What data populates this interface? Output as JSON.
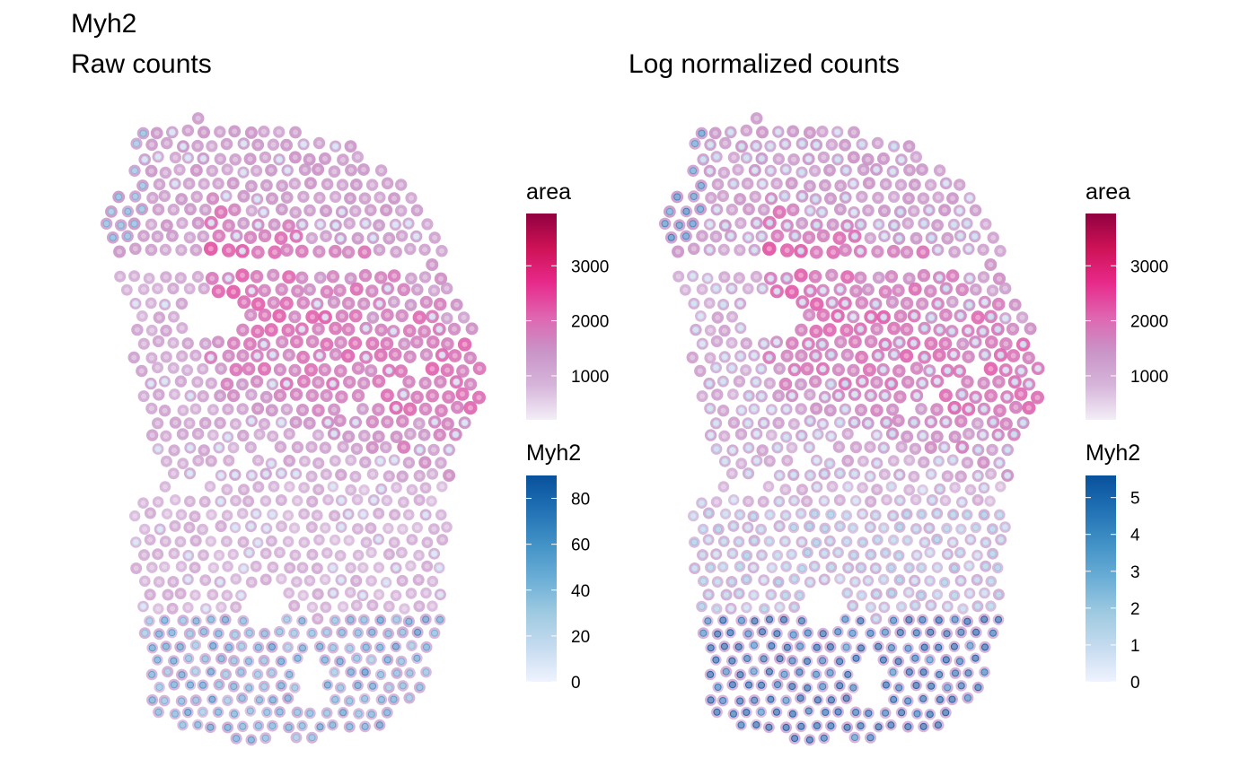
{
  "figure": {
    "title": "Myh2"
  },
  "chart_data": [
    {
      "type": "scatter",
      "subtitle": "Raw counts",
      "overlay_layers": [
        "area",
        "Myh2"
      ],
      "legends": [
        {
          "title": "area",
          "palette": [
            "#f3eef7",
            "#d6b5da",
            "#c994c7",
            "#df65b0",
            "#e7298a",
            "#ce1256",
            "#91003f"
          ],
          "range": [
            200,
            3950
          ],
          "ticks": [
            1000,
            2000,
            3000
          ],
          "tick_labels": [
            "1000",
            "2000",
            "3000"
          ]
        },
        {
          "title": "Myh2",
          "palette": [
            "#eff3ff",
            "#c6dbef",
            "#9ecae1",
            "#6baed6",
            "#4292c6",
            "#2171b5",
            "#08519c"
          ],
          "range": [
            0,
            90
          ],
          "ticks": [
            0,
            20,
            40,
            60,
            80
          ],
          "tick_labels": [
            "0",
            "20",
            "40",
            "60",
            "80"
          ]
        }
      ]
    },
    {
      "type": "scatter",
      "subtitle": "Log normalized counts",
      "overlay_layers": [
        "area",
        "Myh2"
      ],
      "legends": [
        {
          "title": "area",
          "palette": [
            "#f3eef7",
            "#d6b5da",
            "#c994c7",
            "#df65b0",
            "#e7298a",
            "#ce1256",
            "#91003f"
          ],
          "range": [
            200,
            3950
          ],
          "ticks": [
            1000,
            2000,
            3000
          ],
          "tick_labels": [
            "1000",
            "2000",
            "3000"
          ]
        },
        {
          "title": "Myh2",
          "palette": [
            "#eff3ff",
            "#c6dbef",
            "#9ecae1",
            "#6baed6",
            "#4292c6",
            "#2171b5",
            "#08519c"
          ],
          "range": [
            0,
            5.6
          ],
          "ticks": [
            0,
            1,
            2,
            3,
            4,
            5
          ],
          "tick_labels": [
            "0",
            "1",
            "2",
            "3",
            "4",
            "5"
          ]
        }
      ]
    }
  ]
}
